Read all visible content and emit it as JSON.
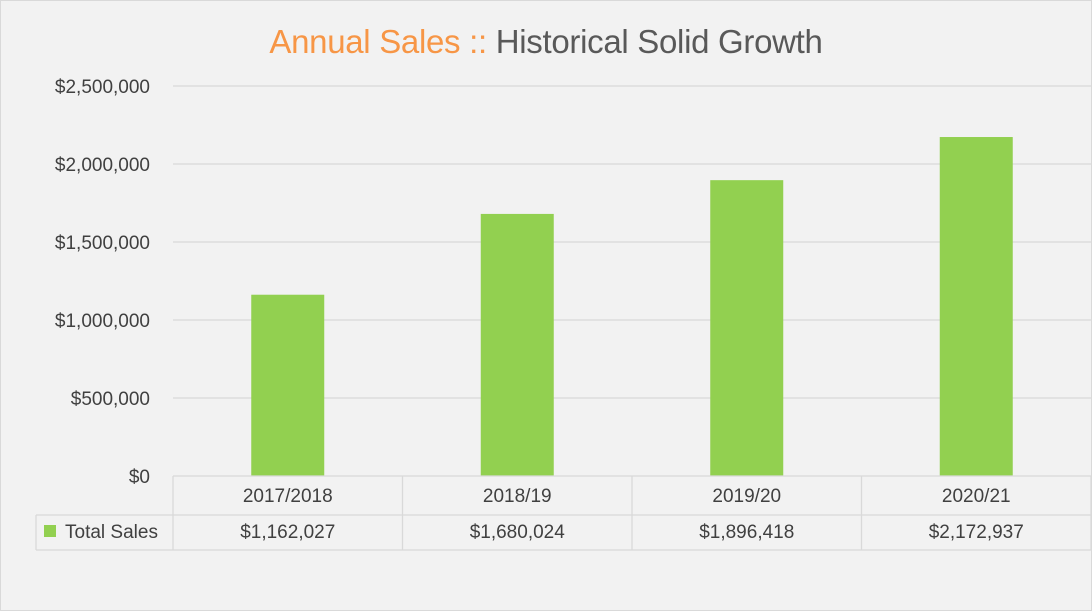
{
  "colors": {
    "background": "#f2f2f2",
    "bar": "#92d050",
    "title_primary": "#f79646",
    "title_secondary": "#595959",
    "grid": "#d9d9d9",
    "text": "#404040"
  },
  "chart_data": {
    "type": "bar",
    "title": "Annual Sales ::",
    "subtitle": "Historical Solid Growth",
    "categories": [
      "2017/2018",
      "2018/19",
      "2019/20",
      "2020/21"
    ],
    "series": [
      {
        "name": "Total Sales",
        "values": [
          1162027,
          1680024,
          1896418,
          2172937
        ],
        "labels": [
          "$1,162,027",
          "$1,680,024",
          "$1,896,418",
          "$2,172,937"
        ]
      }
    ],
    "y_ticks": [
      0,
      500000,
      1000000,
      1500000,
      2000000,
      2500000
    ],
    "y_tick_labels": [
      "$0",
      "$500,000",
      "$1,000,000",
      "$1,500,000",
      "$2,000,000",
      "$2,500,000"
    ],
    "ylim": [
      0,
      2500000
    ],
    "grid": true,
    "legend": "data-table"
  }
}
